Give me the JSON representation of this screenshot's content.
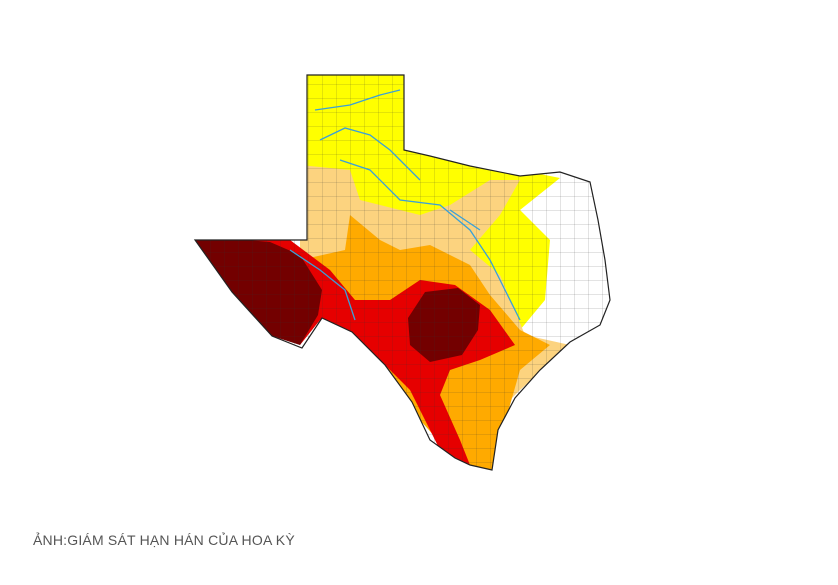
{
  "caption": "ẢNH:GIÁM SÁT HẠN HÁN CỦA HOA KỲ"
}
